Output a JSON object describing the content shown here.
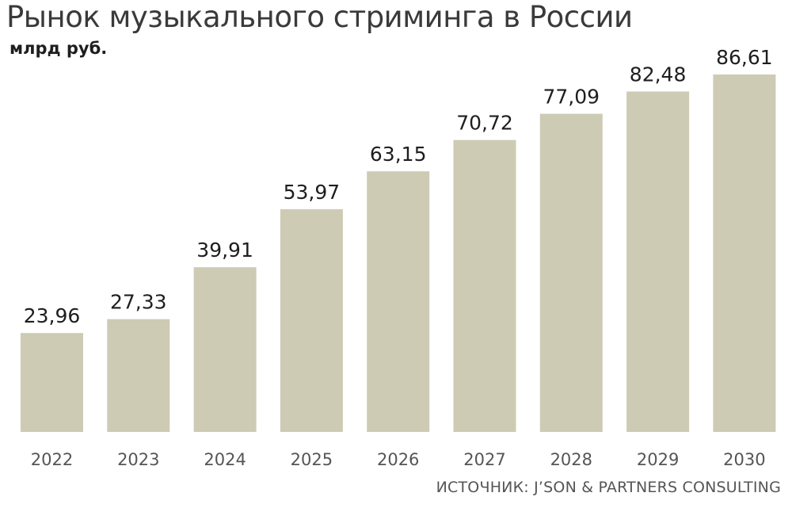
{
  "header": {
    "title": "Рынок музыкального стриминга в России",
    "units": "млрд руб."
  },
  "footer": {
    "source": "ИСТОЧНИК: J’SON & PARTNERS CONSULTING"
  },
  "colors": {
    "bar": "#cdcbb3",
    "value_label": "#1e1e1e",
    "tick_label": "#555555"
  },
  "chart_data": {
    "type": "bar",
    "title": "Рынок музыкального стриминга в России",
    "ylabel": "млрд руб.",
    "xlabel": "",
    "categories": [
      "2022",
      "2023",
      "2024",
      "2025",
      "2026",
      "2027",
      "2028",
      "2029",
      "2030"
    ],
    "values": [
      23.96,
      27.33,
      39.91,
      53.97,
      63.15,
      70.72,
      77.09,
      82.48,
      86.61
    ],
    "value_labels": [
      "23,96",
      "27,33",
      "39,91",
      "53,97",
      "63,15",
      "70,72",
      "77,09",
      "82,48",
      "86,61"
    ],
    "ylim": [
      0,
      86.61
    ],
    "grid": false,
    "legend": "none",
    "data_labels": "above-bars"
  }
}
